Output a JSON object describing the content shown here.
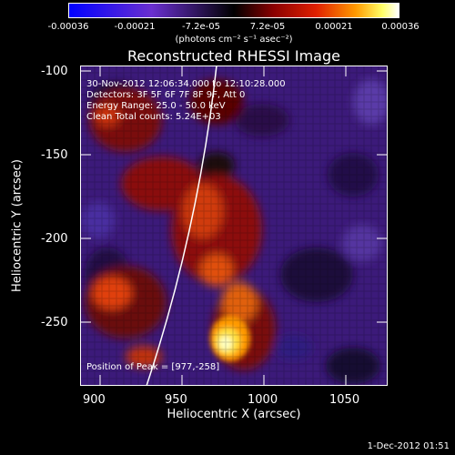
{
  "colorbar": {
    "ticks": [
      "-0.00036",
      "-0.00021",
      "-7.2e-05",
      "7.2e-05",
      "0.00021",
      "0.00036"
    ],
    "unit_label": "(photons cm⁻² s⁻¹ asec⁻²)"
  },
  "plot": {
    "title": "Reconstructed RHESSI Image",
    "info_lines": [
      "30-Nov-2012 12:06:34.000 to 12:10:28.000",
      "Detectors: 3F 5F 6F 7F 8F 9F, Att 0",
      "Energy Range: 25.0 - 50.0 keV",
      "Clean     Total counts: 5.24E+03"
    ],
    "peak_label": "Position of Peak = [977,-258]",
    "xlabel": "Heliocentric X (arcsec)",
    "ylabel": "Heliocentric Y (arcsec)",
    "xticks": [
      "900",
      "950",
      "1000",
      "1050"
    ],
    "yticks": [
      "-100",
      "-150",
      "-200",
      "-250"
    ]
  },
  "footer": {
    "timestamp": "1-Dec-2012 01:51"
  }
}
